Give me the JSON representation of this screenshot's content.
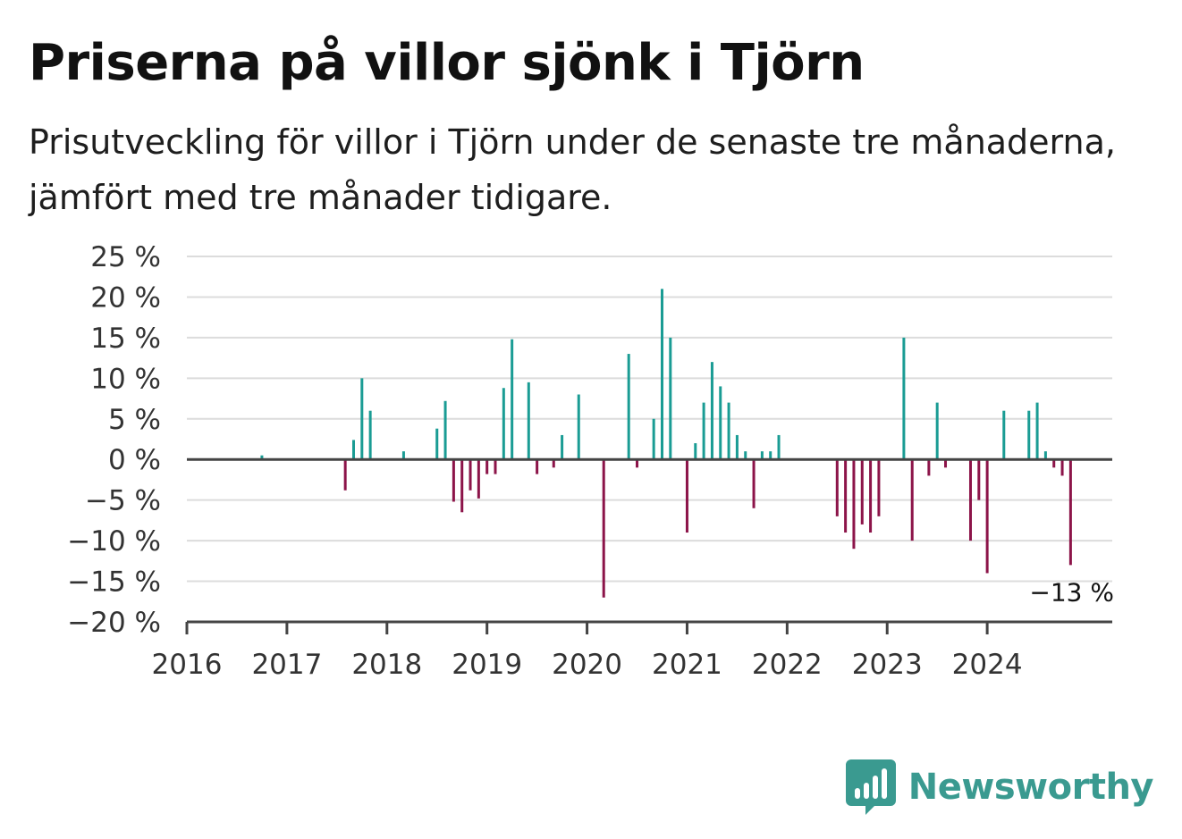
{
  "chart_data": {
    "type": "bar",
    "title": "Priserna på villor sjönk i Tjörn",
    "subtitle": "Prisutveckling för villor i Tjörn under de senaste tre månaderna, jämfört med tre månader tidigare.",
    "xlabel": "",
    "ylabel": "",
    "xlim": [
      2016.0,
      2025.25
    ],
    "ylim": [
      -20,
      25
    ],
    "y_ticks": [
      25,
      20,
      15,
      10,
      5,
      0,
      -5,
      -10,
      -15,
      -20
    ],
    "y_tick_labels": [
      "25 %",
      "20 %",
      "15 %",
      "10 %",
      "5 %",
      "0 %",
      "−5 %",
      "−10 %",
      "−15 %",
      "−20 %"
    ],
    "x_tick_labels": [
      "2016",
      "2017",
      "2018",
      "2019",
      "2020",
      "2021",
      "2022",
      "2023",
      "2024"
    ],
    "grid": true,
    "colors": {
      "positive": "#1a9c94",
      "negative": "#8c1449",
      "grid": "#dcdcdc",
      "axis": "#444444"
    },
    "series": [
      {
        "x": [
          "2016-10",
          "2017-08",
          "2017-09",
          "2017-10",
          "2017-11",
          "2018-03",
          "2018-07",
          "2018-08",
          "2018-09",
          "2018-10",
          "2018-11",
          "2018-12",
          "2019-01",
          "2019-02",
          "2019-03",
          "2019-04",
          "2019-06",
          "2019-07",
          "2019-09",
          "2019-10",
          "2019-12",
          "2020-03",
          "2020-06",
          "2020-07",
          "2020-09",
          "2020-10",
          "2020-11",
          "2021-01",
          "2021-02",
          "2021-03",
          "2021-04",
          "2021-05",
          "2021-06",
          "2021-07",
          "2021-08",
          "2021-09",
          "2021-10",
          "2021-11",
          "2021-12",
          "2022-07",
          "2022-08",
          "2022-09",
          "2022-10",
          "2022-11",
          "2022-12",
          "2023-03",
          "2023-04",
          "2023-06",
          "2023-07",
          "2023-08",
          "2023-11",
          "2023-12",
          "2024-01",
          "2024-03",
          "2024-06",
          "2024-07",
          "2024-08",
          "2024-09",
          "2024-10",
          "2024-11"
        ],
        "values": [
          0.5,
          -3.8,
          2.4,
          10,
          6,
          1,
          3.8,
          7.2,
          -5.2,
          -6.5,
          -3.8,
          -4.8,
          -1.8,
          -1.8,
          8.8,
          14.8,
          9.5,
          -1.8,
          -1,
          3,
          8,
          -17,
          13,
          -1,
          5,
          21,
          15,
          -9,
          2,
          7,
          12,
          9,
          7,
          3,
          1,
          -6,
          1,
          1,
          3,
          -7,
          -9,
          -11,
          -8,
          -9,
          -7,
          15,
          -10,
          -2,
          7,
          -1,
          -10,
          -5,
          -14,
          6,
          6,
          7,
          1,
          -1,
          -2,
          -13
        ]
      }
    ],
    "annotation": {
      "text": "−13 %",
      "at_x": "2024-11"
    }
  },
  "brand": {
    "name": "Newsworthy",
    "logo_icon": "bar-chart-badge-icon"
  }
}
